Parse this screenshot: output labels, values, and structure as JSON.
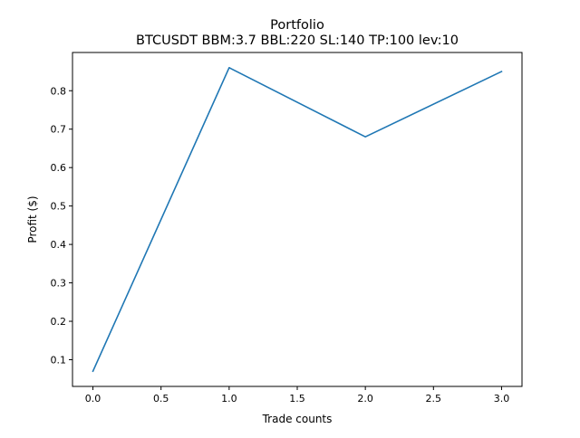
{
  "chart_data": {
    "type": "line",
    "title": "Portfolio",
    "subtitle": "BTCUSDT BBM:3.7 BBL:220 SL:140 TP:100 lev:10",
    "xlabel": "Trade counts",
    "ylabel": "Profit ($)",
    "x": [
      0,
      1,
      2,
      3
    ],
    "series": [
      {
        "values": [
          0.07,
          0.86,
          0.68,
          0.85
        ],
        "color": "#1f77b4"
      }
    ],
    "xlim": [
      -0.15,
      3.15
    ],
    "ylim": [
      0.0305,
      0.8995
    ],
    "xticks": [
      0.0,
      0.5,
      1.0,
      1.5,
      2.0,
      2.5,
      3.0
    ],
    "xtick_labels": [
      "0.0",
      "0.5",
      "1.0",
      "1.5",
      "2.0",
      "2.5",
      "3.0"
    ],
    "yticks": [
      0.1,
      0.2,
      0.3,
      0.4,
      0.5,
      0.6,
      0.7,
      0.8
    ],
    "ytick_labels": [
      "0.1",
      "0.2",
      "0.3",
      "0.4",
      "0.5",
      "0.6",
      "0.7",
      "0.8"
    ],
    "grid": false,
    "legend": "none"
  }
}
